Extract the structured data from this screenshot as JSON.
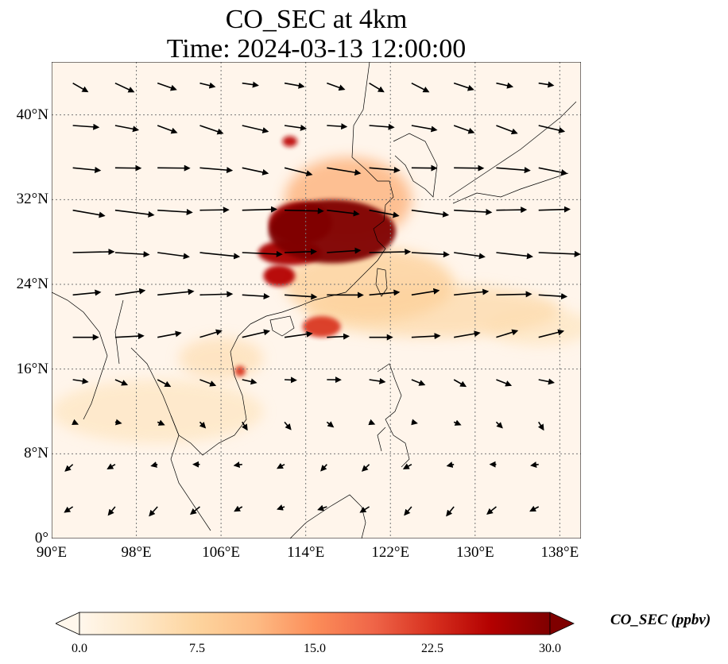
{
  "title": {
    "line1": "CO_SEC at 4km",
    "line2": "Time: 2024-03-13 12:00:00"
  },
  "map": {
    "lon_range": [
      90,
      140
    ],
    "lat_range": [
      0,
      45
    ],
    "x_ticks": [
      "90°E",
      "98°E",
      "106°E",
      "114°E",
      "122°E",
      "130°E",
      "138°E"
    ],
    "x_tick_values": [
      90,
      98,
      106,
      114,
      122,
      130,
      138
    ],
    "y_ticks": [
      "0°",
      "8°N",
      "16°N",
      "24°N",
      "32°N",
      "40°N"
    ],
    "y_tick_values": [
      0,
      8,
      16,
      24,
      32,
      40
    ],
    "gridlines": true
  },
  "colorbar": {
    "label": "CO_SEC (ppbv)",
    "colormap": "OrRd",
    "range": [
      0,
      30
    ],
    "ticks": [
      "0.0",
      "7.5",
      "15.0",
      "22.5",
      "30.0"
    ],
    "extend": "both"
  },
  "concentration_features": [
    {
      "lon": 116.5,
      "lat": 29.0,
      "value": 30,
      "rx": 6.0,
      "ry": 3.0
    },
    {
      "lon": 113.5,
      "lat": 29.8,
      "value": 28,
      "rx": 3.0,
      "ry": 2.0
    },
    {
      "lon": 112.5,
      "lat": 27.0,
      "value": 27,
      "rx": 3.0,
      "ry": 1.2
    },
    {
      "lon": 111.5,
      "lat": 24.8,
      "value": 26,
      "rx": 1.5,
      "ry": 1.0
    },
    {
      "lon": 115.5,
      "lat": 20.0,
      "value": 22,
      "rx": 1.8,
      "ry": 1.0
    },
    {
      "lon": 112.5,
      "lat": 37.5,
      "value": 25,
      "rx": 0.7,
      "ry": 0.5
    },
    {
      "lon": 107.8,
      "lat": 15.8,
      "value": 22,
      "rx": 0.5,
      "ry": 0.5
    },
    {
      "lon": 118.0,
      "lat": 32.0,
      "value": 12,
      "rx": 6.0,
      "ry": 4.0
    },
    {
      "lon": 120.0,
      "lat": 24.0,
      "value": 8,
      "rx": 8.0,
      "ry": 3.5
    },
    {
      "lon": 126.0,
      "lat": 21.5,
      "value": 6,
      "rx": 12.0,
      "ry": 2.5
    },
    {
      "lon": 100.0,
      "lat": 12.0,
      "value": 4,
      "rx": 10.0,
      "ry": 3.0
    },
    {
      "lon": 106.0,
      "lat": 17.0,
      "value": 5,
      "rx": 4.0,
      "ry": 2.0
    },
    {
      "lon": 136.0,
      "lat": 20.0,
      "value": 4,
      "rx": 5.0,
      "ry": 1.8
    }
  ],
  "wind_field": {
    "rows": [
      {
        "lat": 43,
        "u": 1.5,
        "v": -0.5
      },
      {
        "lat": 39,
        "u": 2.0,
        "v": -0.4
      },
      {
        "lat": 35,
        "u": 2.6,
        "v": -0.3
      },
      {
        "lat": 31,
        "u": 3.0,
        "v": -0.2
      },
      {
        "lat": 27,
        "u": 3.2,
        "v": -0.1
      },
      {
        "lat": 23,
        "u": 2.8,
        "v": 0.1
      },
      {
        "lat": 19,
        "u": 2.2,
        "v": 0.3
      },
      {
        "lat": 15,
        "u": 1.2,
        "v": -0.3
      },
      {
        "lat": 11,
        "u": 0.5,
        "v": -0.4
      },
      {
        "lat": 7,
        "u": -0.6,
        "v": -0.3
      },
      {
        "lat": 3,
        "u": -0.7,
        "v": -0.5
      }
    ],
    "lons": [
      92,
      96,
      100,
      104,
      108,
      112,
      116,
      120,
      124,
      128,
      132,
      136
    ]
  }
}
